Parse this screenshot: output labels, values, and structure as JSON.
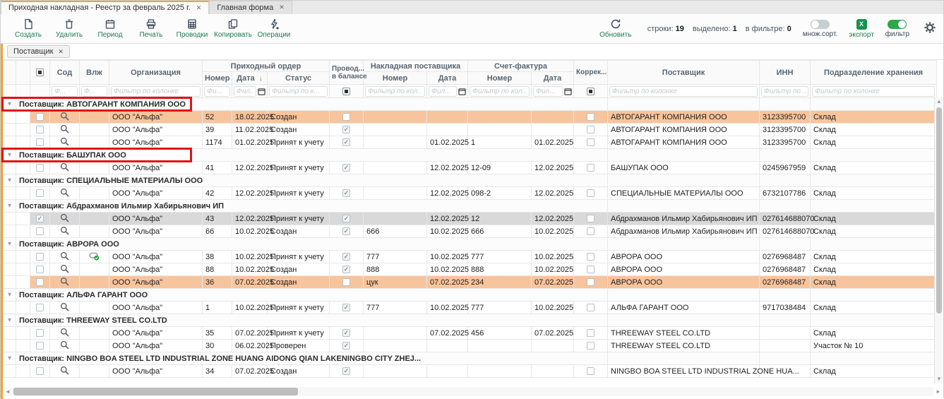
{
  "window": {
    "tabs": [
      {
        "label": "Приходная накладная - Реестр за февраль 2025 г.",
        "close": "✕",
        "active": true
      },
      {
        "label": "Главная форма",
        "close": "✕",
        "active": false
      }
    ]
  },
  "toolbar": {
    "left_buttons": [
      {
        "id": "create",
        "label": "Создать",
        "icon": "new-document-icon"
      },
      {
        "id": "delete",
        "label": "Удалить",
        "icon": "trash-icon"
      },
      {
        "id": "period",
        "label": "Период",
        "icon": "calendar-icon"
      },
      {
        "id": "print",
        "label": "Печать",
        "icon": "printer-icon"
      },
      {
        "id": "postings",
        "label": "Проводки",
        "icon": "calculator-icon"
      },
      {
        "id": "copy",
        "label": "Копировать",
        "icon": "copy-icon"
      },
      {
        "id": "operations",
        "label": "Операции",
        "icon": "lightning-icon"
      }
    ],
    "refresh_label": "Обновить",
    "counters": [
      {
        "label": "строки:",
        "value": "19"
      },
      {
        "label": "выделено:",
        "value": "1"
      },
      {
        "label": "в фильтре:",
        "value": "0"
      }
    ],
    "multi_sort": {
      "label": "множ.сорт.",
      "on": false
    },
    "export": {
      "label": "экспорт",
      "icon_letter": "X"
    },
    "filter_toggle": {
      "label": "фильтр",
      "on": true
    }
  },
  "filters_bar": {
    "chips": [
      {
        "label": "Поставщик",
        "close": "✕"
      }
    ]
  },
  "table": {
    "group_headers": {
      "po": "Приходный ордер",
      "np": "Накладная поставщика",
      "sf": "Счет-фактура"
    },
    "columns": {
      "sod": "Сод",
      "vlzh": "Влж",
      "org": "Организация",
      "po_num": "Номер",
      "po_date": "Дата",
      "po_sort": "↓",
      "po_status": "Статус",
      "provod1": "Провод...",
      "provod2": "в балансе",
      "np_num": "Номер",
      "np_date": "Дата",
      "sf_num": "Номер",
      "sf_date": "Дата",
      "korr": "Коррек...",
      "supplier": "Поставщик",
      "inn": "ИНН",
      "store": "Подразделение хранения"
    },
    "filter_placeholders": {
      "sod": "Ф...",
      "vlzh": "Ф...",
      "org": "Фильтр по колонке",
      "po_num": "Фи...",
      "po_date": "Фил...",
      "po_status": "Фильтр по к...",
      "np_num": "Фильтр по кол...",
      "np_date": "Фил...",
      "sf_num": "Фильтр по кол...",
      "sf_date": "Фил...",
      "supplier": "Фильтр по колонке",
      "inn": "Фильтр по ...",
      "store": "Фильтр по колонке"
    },
    "groups": [
      {
        "label": "Поставщик: АВТОГАРАНТ КОМПАНИЯ ООО",
        "annotated": true,
        "rows": [
          {
            "highlight": "orange",
            "checked": false,
            "attachment": false,
            "org": "ООО \"Альфа\"",
            "po_num": "52",
            "po_date": "18.02.2025",
            "po_status": "Создан",
            "provod": false,
            "np_num": "",
            "np_date": "",
            "sf_num": "",
            "sf_date": "",
            "korr": false,
            "supplier": "АВТОГАРАНТ КОМПАНИЯ ООО",
            "inn": "3123395700",
            "store": "Склад"
          },
          {
            "highlight": null,
            "checked": false,
            "attachment": false,
            "org": "ООО \"Альфа\"",
            "po_num": "39",
            "po_date": "11.02.2025",
            "po_status": "Создан",
            "provod": true,
            "np_num": "",
            "np_date": "",
            "sf_num": "",
            "sf_date": "",
            "korr": false,
            "supplier": "АВТОГАРАНТ КОМПАНИЯ ООО",
            "inn": "3123395700",
            "store": "Склад"
          },
          {
            "highlight": null,
            "checked": false,
            "attachment": false,
            "org": "ООО \"Альфа\"",
            "po_num": "1174",
            "po_date": "01.02.2025",
            "po_status": "Принят к учету",
            "provod": true,
            "np_num": "",
            "np_date": "01.02.2025",
            "sf_num": "1",
            "sf_date": "01.02.2025",
            "korr": false,
            "supplier": "АВТОГАРАНТ КОМПАНИЯ ООО",
            "inn": "3123395700",
            "store": "Склад"
          }
        ]
      },
      {
        "label": "Поставщик: БАШУПАК ООО",
        "annotated": true,
        "rows": [
          {
            "highlight": null,
            "checked": false,
            "attachment": false,
            "org": "ООО \"Альфа\"",
            "po_num": "41",
            "po_date": "12.02.2025",
            "po_status": "Принят к учету",
            "provod": true,
            "np_num": "",
            "np_date": "12.02.2025",
            "sf_num": "12-09",
            "sf_date": "12.02.2025",
            "korr": false,
            "supplier": "БАШУПАК ООО",
            "inn": "0245967959",
            "store": "Склад"
          }
        ]
      },
      {
        "label": "Поставщик: СПЕЦИАЛЬНЫЕ МАТЕРИАЛЫ ООО",
        "annotated": false,
        "rows": [
          {
            "highlight": null,
            "checked": false,
            "attachment": false,
            "org": "ООО \"Альфа\"",
            "po_num": "42",
            "po_date": "12.02.2025",
            "po_status": "Принят к учету",
            "provod": true,
            "np_num": "",
            "np_date": "12.02.2025",
            "sf_num": "098-2",
            "sf_date": "12.02.2025",
            "korr": false,
            "supplier": "СПЕЦИАЛЬНЫЕ МАТЕРИАЛЫ ООО",
            "inn": "6732107786",
            "store": "Склад"
          }
        ]
      },
      {
        "label": "Поставщик: Абдрахманов Ильмир Хабирьянович ИП",
        "annotated": false,
        "rows": [
          {
            "highlight": "selected",
            "checked": true,
            "attachment": false,
            "org": "ООО \"Альфа\"",
            "po_num": "43",
            "po_date": "12.02.2025",
            "po_status": "Принят к учету",
            "provod": true,
            "np_num": "",
            "np_date": "12.02.2025",
            "sf_num": "12",
            "sf_date": "12.02.2025",
            "korr": false,
            "supplier": "Абдрахманов Ильмир Хабирьянович ИП",
            "inn": "027614688070",
            "store": "Склад"
          },
          {
            "highlight": null,
            "checked": false,
            "attachment": false,
            "org": "ООО \"Альфа\"",
            "po_num": "66",
            "po_date": "10.02.2025",
            "po_status": "Создан",
            "provod": true,
            "np_num": "666",
            "np_date": "10.02.2025",
            "sf_num": "666",
            "sf_date": "10.02.2025",
            "korr": false,
            "supplier": "Абдрахманов Ильмир Хабирьянович ИП",
            "inn": "027614688070",
            "store": "Склад"
          }
        ]
      },
      {
        "label": "Поставщик: АВРОРА ООО",
        "annotated": false,
        "rows": [
          {
            "highlight": null,
            "checked": false,
            "attachment": true,
            "org": "ООО \"Альфа\"",
            "po_num": "38",
            "po_date": "10.02.2025",
            "po_status": "Принят к учету",
            "provod": true,
            "np_num": "777",
            "np_date": "10.02.2025",
            "sf_num": "777",
            "sf_date": "10.02.2025",
            "korr": false,
            "supplier": "АВРОРА ООО",
            "inn": "0276968487",
            "store": "Склад"
          },
          {
            "highlight": null,
            "checked": false,
            "attachment": false,
            "org": "ООО \"Альфа\"",
            "po_num": "88",
            "po_date": "10.02.2025",
            "po_status": "Создан",
            "provod": true,
            "np_num": "888",
            "np_date": "10.02.2025",
            "sf_num": "888",
            "sf_date": "10.02.2025",
            "korr": false,
            "supplier": "АВРОРА ООО",
            "inn": "0276968487",
            "store": "Склад"
          },
          {
            "highlight": "orange",
            "checked": false,
            "attachment": false,
            "org": "ООО \"Альфа\"",
            "po_num": "36",
            "po_date": "07.02.2025",
            "po_status": "Создан",
            "provod": false,
            "np_num": "цук",
            "np_date": "07.02.2025",
            "sf_num": "234",
            "sf_date": "07.02.2025",
            "korr": false,
            "supplier": "АВРОРА ООО",
            "inn": "0276968487",
            "store": "Склад"
          }
        ]
      },
      {
        "label": "Поставщик: АЛЬФА ГАРАНТ ООО",
        "annotated": false,
        "rows": [
          {
            "highlight": null,
            "checked": false,
            "attachment": false,
            "org": "ООО \"Альфа\"",
            "po_num": "1",
            "po_date": "10.02.2025",
            "po_status": "Принят к учету",
            "provod": true,
            "np_num": "777",
            "np_date": "10.02.2025",
            "sf_num": "777",
            "sf_date": "10.02.2025",
            "korr": false,
            "supplier": "АЛЬФА ГАРАНТ ООО",
            "inn": "9717038484",
            "store": "Склад"
          }
        ]
      },
      {
        "label": "Поставщик: THREEWAY STEEL CO.LTD",
        "annotated": false,
        "rows": [
          {
            "highlight": null,
            "checked": false,
            "attachment": false,
            "org": "ООО \"Альфа\"",
            "po_num": "35",
            "po_date": "07.02.2025",
            "po_status": "Принят к учету",
            "provod": true,
            "np_num": "",
            "np_date": "07.02.2025",
            "sf_num": "456",
            "sf_date": "07.02.2025",
            "korr": false,
            "supplier": "THREEWAY STEEL CO.LTD",
            "inn": "",
            "store": "Склад"
          },
          {
            "highlight": null,
            "checked": false,
            "attachment": false,
            "org": "ООО \"Альфа\"",
            "po_num": "30",
            "po_date": "06.02.2025",
            "po_status": "Проверен",
            "provod": true,
            "np_num": "",
            "np_date": "",
            "sf_num": "",
            "sf_date": "",
            "korr": false,
            "supplier": "THREEWAY STEEL CO.LTD",
            "inn": "",
            "store": "Участок № 10"
          }
        ]
      },
      {
        "label": "Поставщик: NINGBO BOA STEEL LTD INDUSTRIAL ZONE HUANG AIDONG QIAN LAKENINGBO CITY ZHEJ...",
        "annotated": false,
        "rows": [
          {
            "highlight": null,
            "checked": false,
            "attachment": false,
            "org": "ООО \"Альфа\"",
            "po_num": "34",
            "po_date": "07.02.2025",
            "po_status": "Создан",
            "provod": true,
            "np_num": "",
            "np_date": "",
            "sf_num": "",
            "sf_date": "",
            "korr": false,
            "supplier": "NINGBO BOA STEEL LTD INDUSTRIAL ZONE HUA...",
            "inn": "",
            "store": "Склад"
          }
        ]
      }
    ]
  },
  "colors": {
    "accent_orange": "#f2a136",
    "row_highlight_orange": "#f8c49c",
    "row_selected_gray": "#d9d9d9",
    "annotation_red": "#e01515",
    "action_green": "#1e7b4f",
    "toggle_on_green": "#2aa84a",
    "export_green": "#17934c"
  }
}
